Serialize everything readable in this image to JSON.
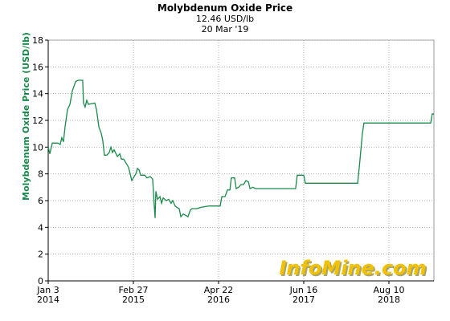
{
  "chart_data": {
    "type": "line",
    "title": "Molybdenum Oxide Price",
    "subtitle": "12.46 USD/lb",
    "date_label": "20 Mar '19",
    "y_label": "Molybdenum Oxide Price (USD/lb)",
    "watermark": "InfoMine.com",
    "grid": true,
    "color": "#1a8a4a",
    "xlim": [
      "2014-01-03",
      "2019-03-20"
    ],
    "xticks": [
      {
        "value": "2014-01-03",
        "label": "Jan 3\n2014"
      },
      {
        "value": "2015-02-27",
        "label": "Feb 27\n2015"
      },
      {
        "value": "2016-04-22",
        "label": "Apr 22\n2016"
      },
      {
        "value": "2017-06-16",
        "label": "Jun 16\n2017"
      },
      {
        "value": "2018-08-10",
        "label": "Aug 10\n2018"
      }
    ],
    "ylim": [
      0,
      18
    ],
    "yticks": [
      0,
      2,
      4,
      6,
      8,
      10,
      12,
      14,
      16,
      18
    ],
    "x": [
      "2014-01-03",
      "2014-01-11",
      "2014-01-23",
      "2014-02-20",
      "2014-03-03",
      "2014-03-11",
      "2014-03-19",
      "2014-03-27",
      "2014-04-08",
      "2014-04-20",
      "2014-05-02",
      "2014-05-18",
      "2014-05-30",
      "2014-06-22",
      "2014-06-26",
      "2014-07-04",
      "2014-07-12",
      "2014-07-20",
      "2014-08-21",
      "2014-08-29",
      "2014-09-10",
      "2014-09-22",
      "2014-09-29",
      "2014-10-07",
      "2014-10-19",
      "2014-10-31",
      "2014-11-08",
      "2014-11-16",
      "2014-11-24",
      "2014-12-10",
      "2014-12-22",
      "2014-12-30",
      "2015-01-10",
      "2015-01-22",
      "2015-02-03",
      "2015-02-11",
      "2015-02-19",
      "2015-03-03",
      "2015-03-11",
      "2015-03-19",
      "2015-03-27",
      "2015-04-04",
      "2015-04-24",
      "2015-05-05",
      "2015-05-21",
      "2015-06-02",
      "2015-06-10",
      "2015-06-14",
      "2015-06-18",
      "2015-06-26",
      "2015-07-08",
      "2015-07-16",
      "2015-07-24",
      "2015-08-08",
      "2015-08-20",
      "2015-09-01",
      "2015-09-09",
      "2015-09-21",
      "2015-09-29",
      "2015-10-11",
      "2015-10-19",
      "2015-10-31",
      "2015-11-12",
      "2015-11-23",
      "2015-12-05",
      "2015-12-13",
      "2016-01-06",
      "2016-01-26",
      "2016-03-06",
      "2016-04-30",
      "2016-05-08",
      "2016-05-24",
      "2016-06-05",
      "2016-06-17",
      "2016-06-24",
      "2016-07-10",
      "2016-07-18",
      "2016-07-30",
      "2016-08-11",
      "2016-08-23",
      "2016-09-04",
      "2016-09-16",
      "2016-09-24",
      "2016-10-09",
      "2016-10-21",
      "2017-05-07",
      "2017-05-15",
      "2017-06-16",
      "2017-06-24",
      "2018-03-09",
      "2018-03-20",
      "2018-04-01",
      "2018-04-09",
      "2019-03-04",
      "2019-03-12",
      "2019-03-20"
    ],
    "values": [
      10,
      9.5,
      10.3,
      10.3,
      10.2,
      10.7,
      10.4,
      11.5,
      12.8,
      13.2,
      14.2,
      14.9,
      15,
      15,
      13.3,
      13,
      13.5,
      13.2,
      13.3,
      12.8,
      11.5,
      11,
      10.5,
      9.4,
      9.4,
      9.6,
      10,
      9.6,
      9.8,
      9.3,
      9.5,
      9.1,
      9.1,
      8.8,
      8.5,
      8,
      7.5,
      7.8,
      8,
      8.4,
      8.3,
      7.9,
      7.9,
      7.7,
      7.8,
      7.6,
      5.6,
      4.7,
      6.7,
      6.1,
      6.3,
      5.8,
      6.2,
      6.0,
      6.1,
      5.8,
      6.0,
      5.6,
      5.5,
      5.4,
      4.8,
      5.0,
      4.9,
      4.8,
      5.3,
      5.4,
      5.4,
      5.5,
      5.6,
      5.6,
      6.3,
      6.3,
      6.8,
      6.8,
      7.7,
      7.7,
      6.9,
      7.0,
      7.2,
      7.2,
      7.5,
      7.4,
      6.9,
      7.0,
      6.9,
      6.9,
      7.9,
      7.9,
      7.3,
      7.3,
      9,
      11,
      11.8,
      11.8,
      12.5,
      12.46
    ]
  }
}
